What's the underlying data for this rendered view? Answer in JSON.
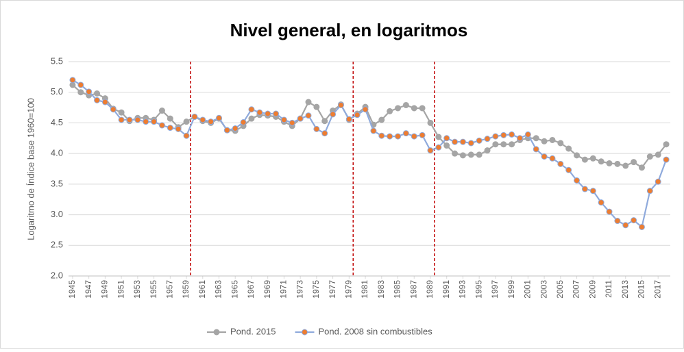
{
  "chart_data": {
    "type": "line",
    "title": "Nivel general, en logaritmos",
    "y_label": "Logaritmo de Índice base 1960=100",
    "x": [
      1945,
      1946,
      1947,
      1948,
      1949,
      1950,
      1951,
      1952,
      1953,
      1954,
      1955,
      1956,
      1957,
      1958,
      1959,
      1960,
      1961,
      1962,
      1963,
      1964,
      1965,
      1966,
      1967,
      1968,
      1969,
      1970,
      1971,
      1972,
      1973,
      1974,
      1975,
      1976,
      1977,
      1978,
      1979,
      1980,
      1981,
      1982,
      1983,
      1984,
      1985,
      1986,
      1987,
      1988,
      1989,
      1990,
      1991,
      1992,
      1993,
      1994,
      1995,
      1996,
      1997,
      1998,
      1999,
      2000,
      2001,
      2002,
      2003,
      2004,
      2005,
      2006,
      2007,
      2008,
      2009,
      2010,
      2011,
      2012,
      2013,
      2014,
      2015,
      2016,
      2017,
      2018
    ],
    "xlim": [
      1944.5,
      2018.5
    ],
    "xticks": [
      1945,
      1947,
      1949,
      1951,
      1953,
      1955,
      1957,
      1959,
      1961,
      1963,
      1965,
      1967,
      1969,
      1971,
      1973,
      1975,
      1977,
      1979,
      1981,
      1983,
      1985,
      1987,
      1989,
      1991,
      1993,
      1995,
      1997,
      1999,
      2001,
      2003,
      2005,
      2007,
      2009,
      2011,
      2013,
      2015,
      2017
    ],
    "ylim": [
      2.0,
      5.5
    ],
    "yticks": [
      {
        "value": 2.0,
        "label": "2.0"
      },
      {
        "value": 2.5,
        "label": "2.5"
      },
      {
        "value": 3.0,
        "label": "3.0"
      },
      {
        "value": 3.5,
        "label": "3.5"
      },
      {
        "value": 4.0,
        "label": "4.0"
      },
      {
        "value": 4.5,
        "label": "4.5"
      },
      {
        "value": 5.0,
        "label": "5.0"
      },
      {
        "value": 5.5,
        "label": "5.5"
      }
    ],
    "grid": true,
    "legend": "bottom",
    "reference_lines": [
      1959.5,
      1979.5,
      1989.5
    ],
    "reference_color": "#c00000",
    "series": [
      {
        "name": "Pond. 2015",
        "color": "#a5a5a5",
        "marker_color": "#a5a5a5",
        "values": [
          5.12,
          5.0,
          4.95,
          4.98,
          4.9,
          4.73,
          4.67,
          4.53,
          4.58,
          4.58,
          4.55,
          4.7,
          4.57,
          4.43,
          4.52,
          4.6,
          4.53,
          4.5,
          4.57,
          4.38,
          4.37,
          4.45,
          4.57,
          4.63,
          4.62,
          4.6,
          4.52,
          4.45,
          4.57,
          4.84,
          4.76,
          4.53,
          4.7,
          4.8,
          4.55,
          4.65,
          4.76,
          4.47,
          4.55,
          4.69,
          4.74,
          4.79,
          4.74,
          4.74,
          4.5,
          4.27,
          4.13,
          4.0,
          3.97,
          3.98,
          3.98,
          4.05,
          4.15,
          4.15,
          4.15,
          4.22,
          4.25,
          4.25,
          4.2,
          4.22,
          4.17,
          4.08,
          3.97,
          3.9,
          3.92,
          3.87,
          3.84,
          3.83,
          3.8,
          3.86,
          3.77,
          3.95,
          3.98,
          4.15
        ]
      },
      {
        "name": "Pond. 2008 sin combustibles",
        "color": "#8faadc",
        "marker_color": "#ed7d31",
        "values": [
          5.2,
          5.12,
          5.01,
          4.87,
          4.84,
          4.72,
          4.55,
          4.55,
          4.55,
          4.52,
          4.52,
          4.46,
          4.42,
          4.4,
          4.29,
          4.6,
          4.55,
          4.52,
          4.58,
          4.38,
          4.41,
          4.51,
          4.72,
          4.67,
          4.65,
          4.65,
          4.55,
          4.5,
          4.57,
          4.62,
          4.4,
          4.33,
          4.64,
          4.79,
          4.56,
          4.63,
          4.72,
          4.37,
          4.29,
          4.28,
          4.28,
          4.33,
          4.28,
          4.3,
          4.05,
          4.1,
          4.25,
          4.19,
          4.19,
          4.17,
          4.21,
          4.24,
          4.28,
          4.3,
          4.31,
          4.25,
          4.31,
          4.07,
          3.95,
          3.92,
          3.83,
          3.73,
          3.56,
          3.42,
          3.39,
          3.2,
          3.05,
          2.9,
          2.83,
          2.91,
          2.8,
          3.39,
          3.54,
          3.9
        ]
      }
    ]
  }
}
